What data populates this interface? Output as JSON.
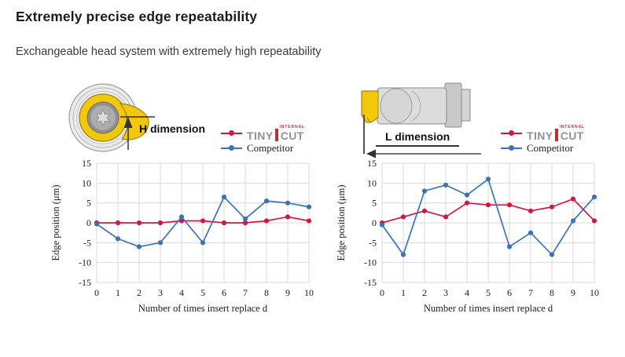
{
  "page": {
    "title": "Extremely precise edge repeatability",
    "subtitle": "Exchangeable head system with extremely high repeatability"
  },
  "brand": {
    "name_left": "TINY",
    "name_right": "CUT",
    "superscript": "INTERNAL"
  },
  "legend": {
    "competitor": "Competitor"
  },
  "colors": {
    "tinycut_red": "#cf1847",
    "competitor_blue": "#3b73b8",
    "grid": "#d9d9d9",
    "axis_text": "#1a1a1a",
    "logo_grey": "#8d929b",
    "logo_red": "#c03030"
  },
  "chart_data": [
    {
      "type": "line",
      "title": "H dimension",
      "xlabel": "Number  of times insert   replace d",
      "ylabel": "Edge position (μm)",
      "x": [
        0,
        1,
        2,
        3,
        4,
        5,
        6,
        7,
        8,
        9,
        10
      ],
      "ylim": [
        -15,
        15
      ],
      "yticks": [
        15,
        10,
        5,
        0,
        -5,
        -10,
        -15
      ],
      "grid": true,
      "legend_position": "top-right",
      "legend": [
        "TINYCUT INTERNAL",
        "Competitor"
      ],
      "series": [
        {
          "name": "TINYCUT INTERNAL",
          "color": "#cf1847",
          "values": [
            0,
            0,
            0,
            0,
            0.5,
            0.5,
            0,
            0,
            0.5,
            1.5,
            0.5
          ]
        },
        {
          "name": "Competitor",
          "color": "#3b73b8",
          "values": [
            -0.3,
            -4,
            -6,
            -5,
            1.5,
            -5,
            6.5,
            1,
            5.5,
            5,
            4
          ]
        }
      ]
    },
    {
      "type": "line",
      "title": "L dimension",
      "xlabel": "Number of times insert    replace d",
      "ylabel": "Edge position (μm)",
      "x": [
        0,
        1,
        2,
        3,
        4,
        5,
        6,
        7,
        8,
        9,
        10
      ],
      "ylim": [
        -15,
        15
      ],
      "yticks": [
        15,
        10,
        5,
        0,
        -5,
        -10,
        -15
      ],
      "grid": true,
      "legend_position": "top-right",
      "legend": [
        "TINYCUT INTERNAL",
        "Competitor"
      ],
      "series": [
        {
          "name": "TINYCUT INTERNAL",
          "color": "#cf1847",
          "values": [
            0,
            1.5,
            3,
            1.5,
            5,
            4.5,
            4.5,
            3,
            4,
            6,
            0.5
          ]
        },
        {
          "name": "Competitor",
          "color": "#3b73b8",
          "values": [
            -0.5,
            -8,
            8,
            9.5,
            7,
            11,
            -6,
            -2.5,
            -8,
            0.5,
            6.5
          ]
        }
      ]
    }
  ]
}
